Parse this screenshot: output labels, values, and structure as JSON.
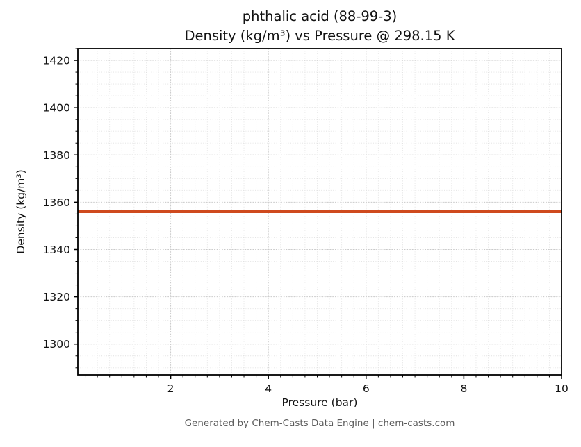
{
  "chart_data": {
    "type": "line",
    "title_line1": "phthalic acid (88-99-3)",
    "title_line2": "Density (kg/m³) vs Pressure @ 298.15 K",
    "xlabel": "Pressure (bar)",
    "ylabel": "Density (kg/m³)",
    "xlim": [
      0.1,
      10
    ],
    "ylim": [
      1287,
      1425
    ],
    "xticks": [
      2,
      4,
      6,
      8,
      10
    ],
    "yticks": [
      1300,
      1320,
      1340,
      1360,
      1380,
      1400,
      1420
    ],
    "x_minor_step": 0.25,
    "y_minor_step": 5,
    "grid": "both",
    "legend": "none",
    "series": [
      {
        "name": "Density",
        "x": [
          0.1,
          10
        ],
        "y": [
          1356,
          1356
        ],
        "color": "#cf4a1e",
        "line_width": 4
      }
    ],
    "footer": "Generated by Chem-Casts Data Engine | chem-casts.com"
  },
  "style": {
    "background": "#ffffff",
    "axis_color": "#000000",
    "grid_major": "#c9c9c9",
    "grid_minor": "#e0e0e0",
    "tick_label_color": "#111111",
    "footer_color": "#5b5b5b"
  }
}
